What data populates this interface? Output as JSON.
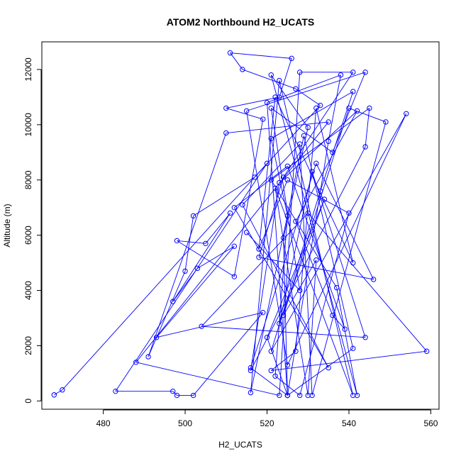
{
  "chart_data": {
    "type": "line",
    "title": "ATOM2 Northbound H2_UCATS",
    "xlabel": "H2_UCATS",
    "ylabel": "Altitude (m)",
    "xlim": [
      465,
      562
    ],
    "ylim": [
      -300,
      13000
    ],
    "xticks": [
      480,
      500,
      520,
      540,
      560
    ],
    "yticks": [
      0,
      2000,
      4000,
      6000,
      8000,
      10000,
      12000
    ],
    "xtick_labels": [
      "480",
      "500",
      "520",
      "540",
      "560"
    ],
    "ytick_labels": [
      "0",
      "2000",
      "4000",
      "6000",
      "8000",
      "10000",
      "12000"
    ],
    "grid": false,
    "marker": "open-circle",
    "colors": {
      "series": "#0000ff",
      "axis": "#000000"
    },
    "series": [
      {
        "values": [
          [
            468,
            220
          ],
          [
            470,
            400
          ],
          [
            520,
            8600
          ],
          [
            483,
            350
          ],
          [
            497,
            350
          ],
          [
            498,
            200
          ],
          [
            502,
            200
          ],
          [
            519,
            3200
          ],
          [
            493,
            2300
          ],
          [
            512,
            5600
          ],
          [
            503,
            4800
          ],
          [
            497,
            3600
          ],
          [
            511,
            6800
          ],
          [
            505,
            5700
          ],
          [
            498,
            5800
          ],
          [
            512,
            4500
          ],
          [
            519,
            10200
          ],
          [
            510,
            10600
          ],
          [
            523,
            11000
          ],
          [
            526,
            12400
          ],
          [
            511,
            12600
          ],
          [
            514,
            12000
          ],
          [
            527,
            11300
          ],
          [
            533,
            10700
          ],
          [
            517,
            8100
          ],
          [
            502,
            6700
          ],
          [
            500,
            4700
          ],
          [
            491,
            1600
          ],
          [
            510,
            9700
          ],
          [
            535,
            10100
          ],
          [
            488,
            1400
          ],
          [
            523,
            200
          ],
          [
            528,
            11900
          ],
          [
            541,
            11900
          ],
          [
            524,
            8100
          ],
          [
            518,
            5200
          ],
          [
            546,
            4400
          ],
          [
            532,
            8600
          ],
          [
            516,
            1200
          ],
          [
            525,
            200
          ],
          [
            520,
            10800
          ],
          [
            538,
            11800
          ],
          [
            535,
            9400
          ],
          [
            525,
            200
          ],
          [
            541,
            1900
          ],
          [
            529,
            9600
          ],
          [
            516,
            300
          ],
          [
            523,
            11600
          ],
          [
            541,
            200
          ],
          [
            522,
            7700
          ],
          [
            530,
            200
          ],
          [
            532,
            5100
          ],
          [
            524,
            3100
          ],
          [
            540,
            10600
          ],
          [
            549,
            10100
          ],
          [
            531,
            200
          ],
          [
            528,
            9300
          ],
          [
            514,
            7100
          ],
          [
            535,
            1200
          ],
          [
            512,
            7000
          ],
          [
            525,
            8500
          ],
          [
            539,
            2600
          ],
          [
            536,
            3100
          ],
          [
            527,
            6500
          ],
          [
            542,
            10500
          ],
          [
            523,
            7900
          ],
          [
            516,
            1100
          ],
          [
            544,
            9200
          ],
          [
            545,
            10600
          ],
          [
            521,
            8000
          ],
          [
            537,
            4100
          ],
          [
            542,
            200
          ],
          [
            521,
            11800
          ],
          [
            530,
            9900
          ],
          [
            524,
            5900
          ],
          [
            525,
            200
          ],
          [
            520,
            2300
          ],
          [
            534,
            7300
          ],
          [
            523,
            2800
          ],
          [
            531,
            8300
          ],
          [
            544,
            2300
          ],
          [
            504,
            2700
          ],
          [
            530,
            6800
          ],
          [
            559,
            1800
          ],
          [
            521,
            1100
          ],
          [
            527,
            1800
          ],
          [
            532,
            10600
          ],
          [
            541,
            5000
          ],
          [
            522,
            11000
          ],
          [
            518,
            5500
          ],
          [
            525,
            8000
          ],
          [
            540,
            6800
          ],
          [
            528,
            200
          ],
          [
            522,
            900
          ],
          [
            525,
            6700
          ],
          [
            521,
            9500
          ],
          [
            541,
            11200
          ],
          [
            533,
            7600
          ],
          [
            521,
            1800
          ],
          [
            554,
            10400
          ],
          [
            525,
            1300
          ],
          [
            515,
            10500
          ],
          [
            544,
            11900
          ],
          [
            536,
            9000
          ],
          [
            521,
            10600
          ],
          [
            528,
            4000
          ],
          [
            515,
            6100
          ]
        ]
      }
    ]
  }
}
